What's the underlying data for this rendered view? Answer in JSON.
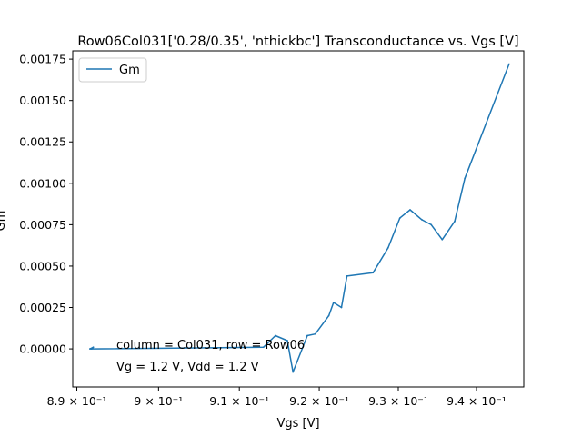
{
  "chart_data": {
    "type": "line",
    "title": "Row06Col031['0.28/0.35', 'nthickbc'] Transconductance vs. Vgs [V]",
    "xlabel": "Vgs [V]",
    "ylabel": "Gm",
    "x_scale": "log",
    "xlim": [
      0.8895,
      0.9461
    ],
    "ylim": [
      -0.00023,
      0.0018
    ],
    "x_ticks": [
      {
        "value": 0.89,
        "label": "8.9 × 10⁻¹"
      },
      {
        "value": 0.9,
        "label": "9 × 10⁻¹"
      },
      {
        "value": 0.91,
        "label": "9.1 × 10⁻¹"
      },
      {
        "value": 0.92,
        "label": "9.2 × 10⁻¹"
      },
      {
        "value": 0.93,
        "label": "9.3 × 10⁻¹"
      },
      {
        "value": 0.94,
        "label": "9.4 × 10⁻¹"
      }
    ],
    "y_ticks": [
      {
        "value": 0.0,
        "label": "0.00000"
      },
      {
        "value": 0.00025,
        "label": "0.00025"
      },
      {
        "value": 0.0005,
        "label": "0.00050"
      },
      {
        "value": 0.00075,
        "label": "0.00075"
      },
      {
        "value": 0.001,
        "label": "0.00100"
      },
      {
        "value": 0.00125,
        "label": "0.00125"
      },
      {
        "value": 0.0015,
        "label": "0.00150"
      },
      {
        "value": 0.00175,
        "label": "0.00175"
      }
    ],
    "grid": false,
    "legend": {
      "position": "top-left",
      "entries": [
        "Gm"
      ]
    },
    "series": [
      {
        "name": "Gm",
        "color": "#1f77b4",
        "x": [
          0.8918,
          0.892,
          0.8916,
          0.913,
          0.9145,
          0.916,
          0.9167,
          0.9185,
          0.9195,
          0.9212,
          0.9218,
          0.9228,
          0.9235,
          0.9268,
          0.9287,
          0.9302,
          0.9315,
          0.933,
          0.9342,
          0.9356,
          0.9372,
          0.9385,
          0.9442
        ],
        "values": [
          0.0,
          1e-05,
          0.0,
          1e-05,
          8e-05,
          5e-05,
          -0.00014,
          8e-05,
          9e-05,
          0.0002,
          0.00028,
          0.00025,
          0.00044,
          0.00046,
          0.00061,
          0.00079,
          0.00084,
          0.00078,
          0.00075,
          0.00066,
          0.00077,
          0.00103,
          0.00172
        ]
      }
    ],
    "annotations": [
      "column = Col031, row = Row06",
      "Vg = 1.2 V, Vdd = 1.2 V"
    ]
  }
}
